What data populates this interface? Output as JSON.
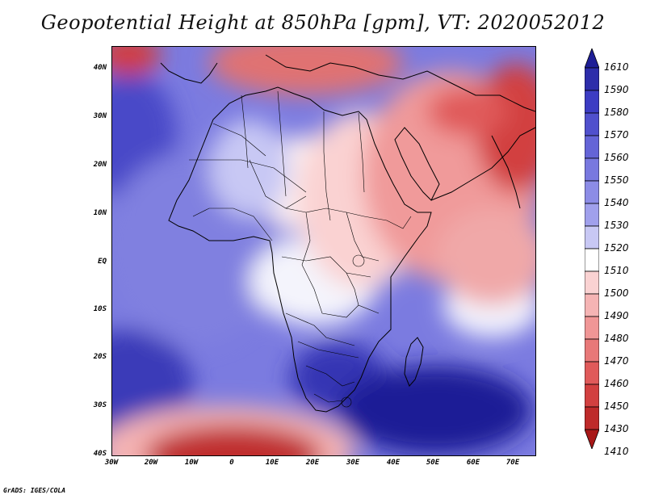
{
  "title": "Geopotential Height at 850hPa [gpm], VT: 2020052012",
  "credit": "GrADS: IGES/COLA",
  "lat_labels": [
    "40N",
    "30N",
    "20N",
    "10N",
    "EQ",
    "10S",
    "20S",
    "30S",
    "40S"
  ],
  "lon_labels": [
    "30W",
    "20W",
    "10W",
    "0",
    "10E",
    "20E",
    "30E",
    "40E",
    "50E",
    "60E",
    "70E"
  ],
  "colorbar": {
    "labels": [
      "1610",
      "1590",
      "1580",
      "1570",
      "1560",
      "1550",
      "1540",
      "1530",
      "1520",
      "1510",
      "1500",
      "1490",
      "1480",
      "1470",
      "1460",
      "1450",
      "1430",
      "1410"
    ],
    "colors": [
      "#1e1e96",
      "#2d2daa",
      "#3c3cc3",
      "#5050cd",
      "#6464d7",
      "#7878df",
      "#8c8ce6",
      "#a0a0ec",
      "#c8c8f4",
      "#ffffff",
      "#fad2d2",
      "#f5b4b4",
      "#f09696",
      "#e87878",
      "#e05a5a",
      "#d24040",
      "#be2a2a",
      "#a81818"
    ]
  }
}
